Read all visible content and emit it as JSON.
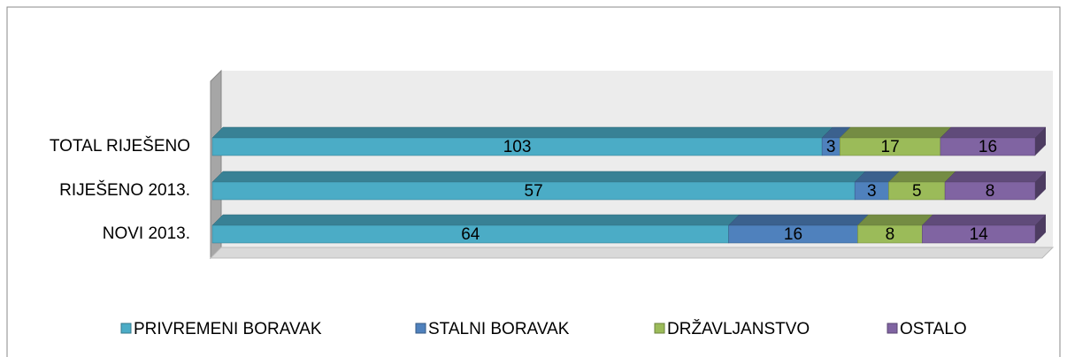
{
  "chart_data": {
    "type": "bar",
    "orientation": "horizontal",
    "stacking": "percent",
    "three_d": true,
    "categories": [
      "TOTAL RIJEŠENO",
      "RIJEŠENO 2013.",
      "NOVI 2013."
    ],
    "series": [
      {
        "name": "PRIVREMENI BORAVAK",
        "color": "#4bacc6",
        "values": [
          103,
          57,
          64
        ]
      },
      {
        "name": "STALNI BORAVAK",
        "color": "#4f81bd",
        "values": [
          3,
          3,
          16
        ]
      },
      {
        "name": "DRŽAVLJANSTVO",
        "color": "#9bbb59",
        "values": [
          17,
          5,
          8
        ]
      },
      {
        "name": "OSTALO",
        "color": "#8064a2",
        "values": [
          16,
          8,
          14
        ]
      }
    ],
    "legend": "bottom"
  }
}
